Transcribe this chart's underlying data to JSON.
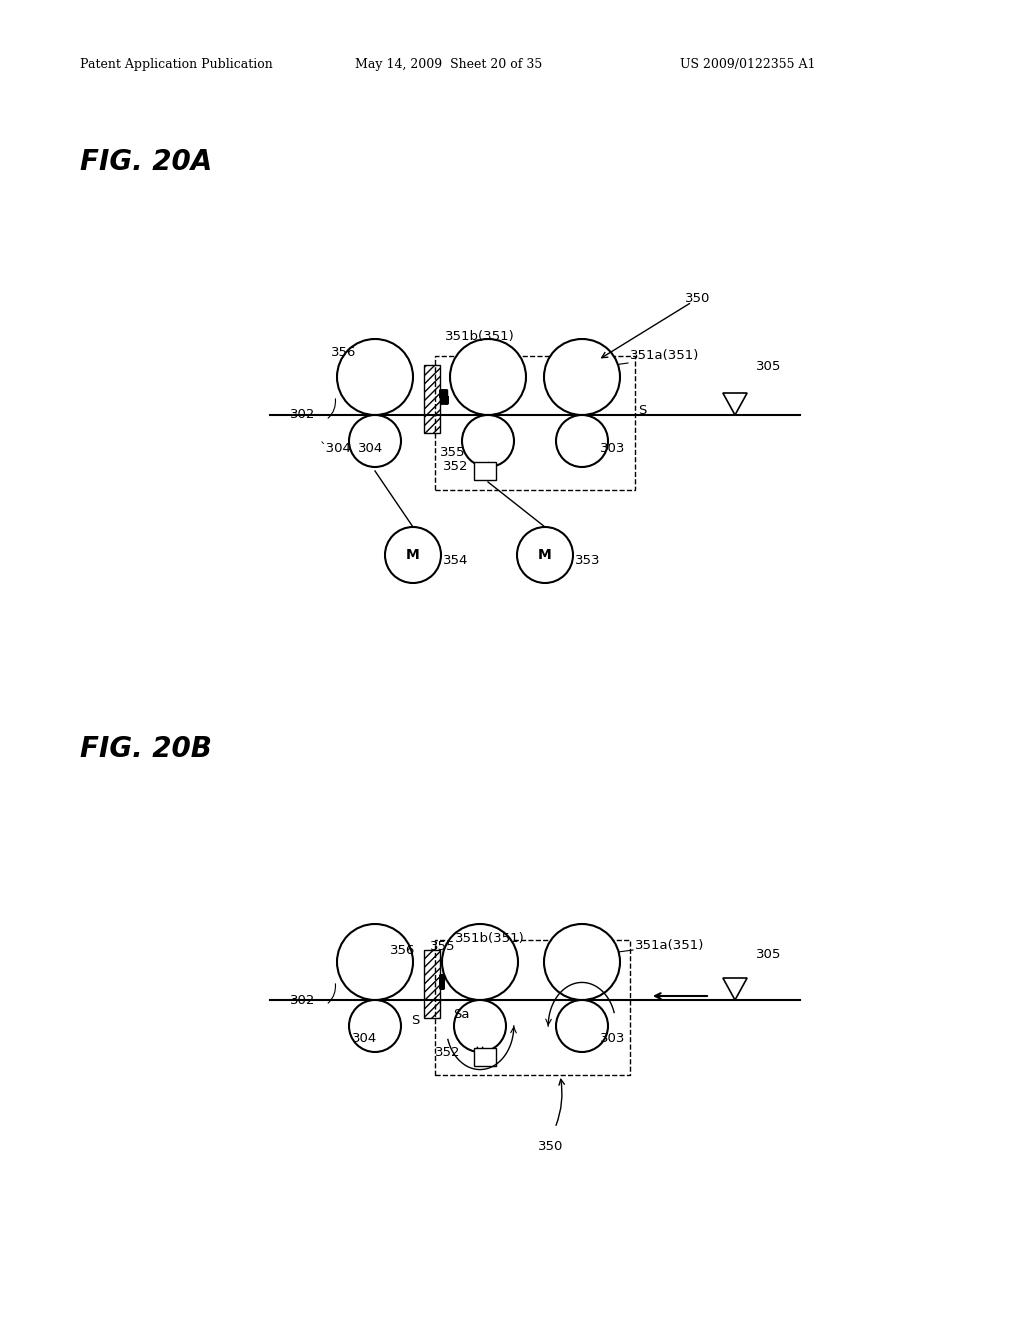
{
  "bg_color": "#ffffff",
  "header_text": "Patent Application Publication",
  "header_date": "May 14, 2009  Sheet 20 of 35",
  "header_patent": "US 2009/0122355 A1",
  "fig_20a_label": "FIG. 20A",
  "fig_20b_label": "FIG. 20B"
}
